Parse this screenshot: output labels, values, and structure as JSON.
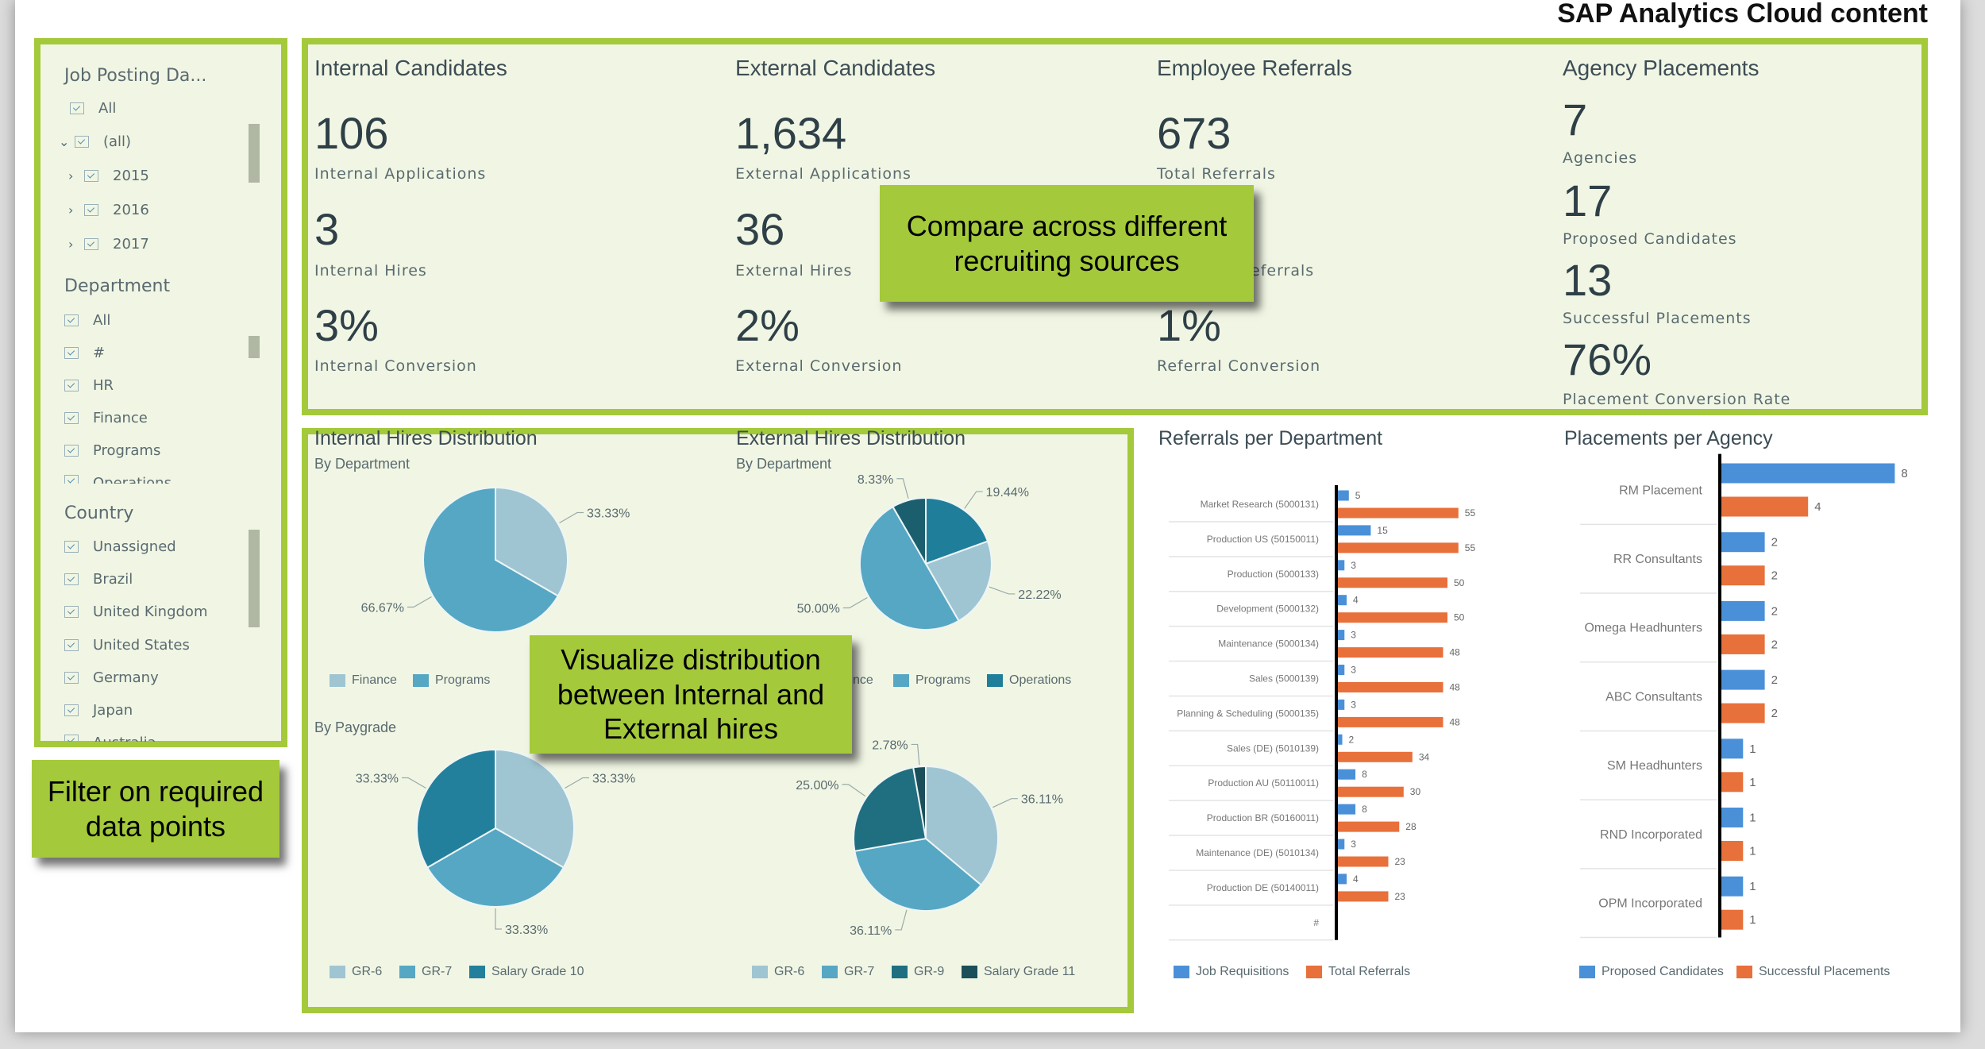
{
  "header": {
    "title": "SAP Analytics Cloud content"
  },
  "colors": {
    "accent_border": "#a4c93a",
    "panel_bg": "#f1f6e4",
    "blue": "#4a90d9",
    "orange": "#e8703a",
    "pie_light": "#9fc5d3",
    "pie_mid": "#56a7c4",
    "pie_teal": "#23809c",
    "pie_dark": "#1b5f6f",
    "pie_darkest": "#1a4f5a"
  },
  "sidebar": {
    "job_posting": {
      "title": "Job Posting Da...",
      "items": [
        {
          "label": "All",
          "level": 0
        },
        {
          "label": "(all)",
          "level": 1,
          "chevron": "chevron-down-icon"
        },
        {
          "label": "2015",
          "level": 2,
          "chevron": "chevron-right-icon"
        },
        {
          "label": "2016",
          "level": 2,
          "chevron": "chevron-right-icon"
        },
        {
          "label": "2017",
          "level": 2,
          "chevron": "chevron-right-icon"
        }
      ]
    },
    "department": {
      "title": "Department",
      "items": [
        "All",
        "#",
        "HR",
        "Finance",
        "Programs",
        "Operations"
      ]
    },
    "country": {
      "title": "Country",
      "items": [
        "Unassigned",
        "Brazil",
        "United Kingdom",
        "United States",
        "Germany",
        "Japan",
        "Australia"
      ]
    }
  },
  "kpis": [
    {
      "title": "Internal Candidates",
      "metrics": [
        {
          "value": "106",
          "label": "Internal Applications"
        },
        {
          "value": "3",
          "label": "Internal Hires"
        },
        {
          "value": "3%",
          "label": "Internal Conversion"
        }
      ]
    },
    {
      "title": "External Candidates",
      "metrics": [
        {
          "value": "1,634",
          "label": "External Applications"
        },
        {
          "value": "36",
          "label": "External Hires"
        },
        {
          "value": "2%",
          "label": "External Conversion"
        }
      ]
    },
    {
      "title": "Employee Referrals",
      "metrics": [
        {
          "value": "673",
          "label": "Total Referrals"
        },
        {
          "value": "",
          "label": "eferrals"
        },
        {
          "value": "1%",
          "label": "Referral Conversion"
        }
      ]
    },
    {
      "title": "Agency Placements",
      "metrics": [
        {
          "value": "7",
          "label": "Agencies"
        },
        {
          "value": "17",
          "label": "Proposed Candidates"
        },
        {
          "value": "13",
          "label": "Successful Placements"
        },
        {
          "value": "76%",
          "label": "Placement Conversion Rate"
        }
      ]
    }
  ],
  "distribution": {
    "internal_title": "Internal Hires Distribution",
    "external_title": "External Hires Distribution",
    "by_department": "By Department",
    "by_paygrade": "By Paygrade"
  },
  "callouts": {
    "compare": "Compare across different\nrecruiting sources",
    "visualize": "Visualize distribution\nbetween Internal and\nExternal hires",
    "filter": "Filter on required\ndata points"
  },
  "chart_data": [
    {
      "type": "pie",
      "id": "int-dept",
      "slices": [
        {
          "name": "Finance",
          "value": 33.33,
          "label": "33.33%",
          "color": "#9fc5d3"
        },
        {
          "name": "Programs",
          "value": 66.67,
          "label": "66.67%",
          "color": "#56a7c4"
        }
      ],
      "legend": [
        "Finance",
        "Programs"
      ]
    },
    {
      "type": "pie",
      "id": "ext-dept",
      "slices": [
        {
          "name": "Operations",
          "value": 19.44,
          "label": "19.44%",
          "color": "#1f7f9b"
        },
        {
          "name": "Finance",
          "value": 22.22,
          "label": "22.22%",
          "color": "#9fc5d3"
        },
        {
          "name": "Programs",
          "value": 50.0,
          "label": "50.00%",
          "color": "#56a7c4"
        },
        {
          "name": "",
          "value": 8.33,
          "label": "8.33%",
          "color": "#1b5f6f"
        }
      ],
      "legend": [
        "Programs",
        "Operations"
      ],
      "legend_partial": "nce"
    },
    {
      "type": "pie",
      "id": "int-pay",
      "slices": [
        {
          "name": "GR-6",
          "value": 33.33,
          "label": "33.33%",
          "color": "#9fc5d3"
        },
        {
          "name": "GR-7",
          "value": 33.33,
          "label": "33.33%",
          "color": "#56a7c4"
        },
        {
          "name": "Salary Grade 10",
          "value": 33.33,
          "label": "33.33%",
          "color": "#23809c"
        }
      ],
      "legend": [
        "GR-6",
        "GR-7",
        "Salary Grade 10"
      ]
    },
    {
      "type": "pie",
      "id": "ext-pay",
      "slices": [
        {
          "name": "GR-6",
          "value": 36.11,
          "label": "36.11%",
          "color": "#9fc5d3"
        },
        {
          "name": "GR-7",
          "value": 36.11,
          "label": "36.11%",
          "color": "#56a7c4"
        },
        {
          "name": "GR-9",
          "value": 25.0,
          "label": "25.00%",
          "color": "#206f80"
        },
        {
          "name": "Salary Grade 11",
          "value": 2.78,
          "label": "2.78%",
          "color": "#1a4f5a"
        }
      ],
      "legend": [
        "GR-6",
        "GR-7",
        "GR-9",
        "Salary Grade 11"
      ]
    },
    {
      "type": "bar",
      "id": "referrals",
      "title": "Referrals per Department",
      "orientation": "horizontal",
      "categories": [
        "Market Research (5000131)",
        "Production US (50150011)",
        "Production (5000133)",
        "Development (5000132)",
        "Maintenance (5000134)",
        "Sales (5000139)",
        "Planning & Scheduling (5000135)",
        "Sales (DE) (5010139)",
        "Production AU (50110011)",
        "Production BR (50160011)",
        "Maintenance (DE) (5010134)",
        "Production DE (50140011)",
        "#"
      ],
      "series": [
        {
          "name": "Job Requisitions",
          "color": "#4a90d9",
          "values": [
            5,
            15,
            3,
            4,
            3,
            3,
            3,
            2,
            8,
            8,
            3,
            4,
            null
          ]
        },
        {
          "name": "Total Referrals",
          "color": "#e8703a",
          "values": [
            55,
            55,
            50,
            50,
            48,
            48,
            48,
            34,
            30,
            28,
            23,
            23,
            null
          ]
        }
      ]
    },
    {
      "type": "bar",
      "id": "placements",
      "title": "Placements per Agency",
      "orientation": "horizontal",
      "categories": [
        "RM Placement",
        "RR Consultants",
        "Omega Headhunters",
        "ABC Consultants",
        "SM Headhunters",
        "RND Incorporated",
        "OPM Incorporated"
      ],
      "series": [
        {
          "name": "Proposed Candidates",
          "color": "#4a90d9",
          "values": [
            8,
            2,
            2,
            2,
            1,
            1,
            1
          ]
        },
        {
          "name": "Successful Placements",
          "color": "#e8703a",
          "values": [
            4,
            2,
            2,
            2,
            1,
            1,
            1
          ]
        }
      ]
    }
  ]
}
